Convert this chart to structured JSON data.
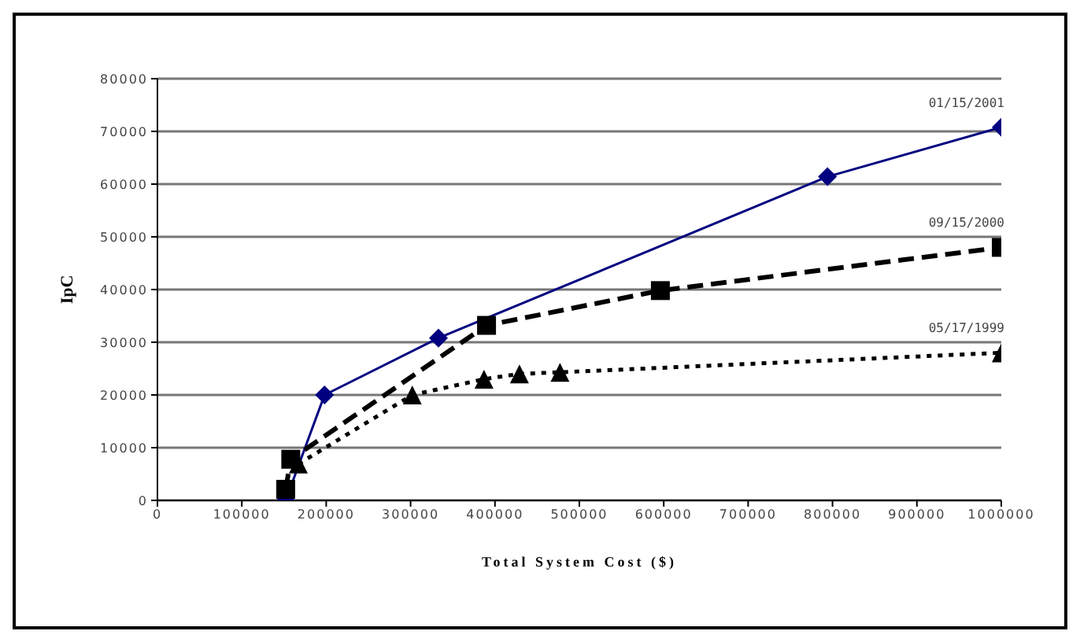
{
  "chart_data": {
    "type": "line",
    "xlabel": "Total System Cost ($)",
    "ylabel": "IpC",
    "xlim": [
      0,
      1000000
    ],
    "xticks": [
      0,
      100000,
      200000,
      300000,
      400000,
      500000,
      600000,
      700000,
      800000,
      900000,
      1000000
    ],
    "ylim": [
      0,
      80000
    ],
    "yticks": [
      0,
      10000,
      20000,
      30000,
      40000,
      50000,
      60000,
      70000,
      80000
    ],
    "grid": "y",
    "legend": false,
    "series": [
      {
        "name": "01/15/2001",
        "color": "#000080",
        "line_style": "solid",
        "marker": "diamond",
        "x": [
          152000,
          198000,
          333000,
          794000,
          1000000
        ],
        "values": [
          0,
          20000,
          30800,
          61400,
          70800
        ]
      },
      {
        "name": "09/15/2000",
        "color": "#000000",
        "line_style": "dashed",
        "marker": "square",
        "x": [
          152000,
          158000,
          390000,
          596000,
          1000000
        ],
        "values": [
          2100,
          7800,
          33200,
          39800,
          48000
        ]
      },
      {
        "name": "05/17/1999",
        "color": "#000000",
        "line_style": "dotted",
        "marker": "triangle",
        "x": [
          167000,
          302000,
          387000,
          429000,
          477000,
          1000000
        ],
        "values": [
          6900,
          20000,
          23000,
          24000,
          24300,
          28000
        ]
      }
    ]
  }
}
